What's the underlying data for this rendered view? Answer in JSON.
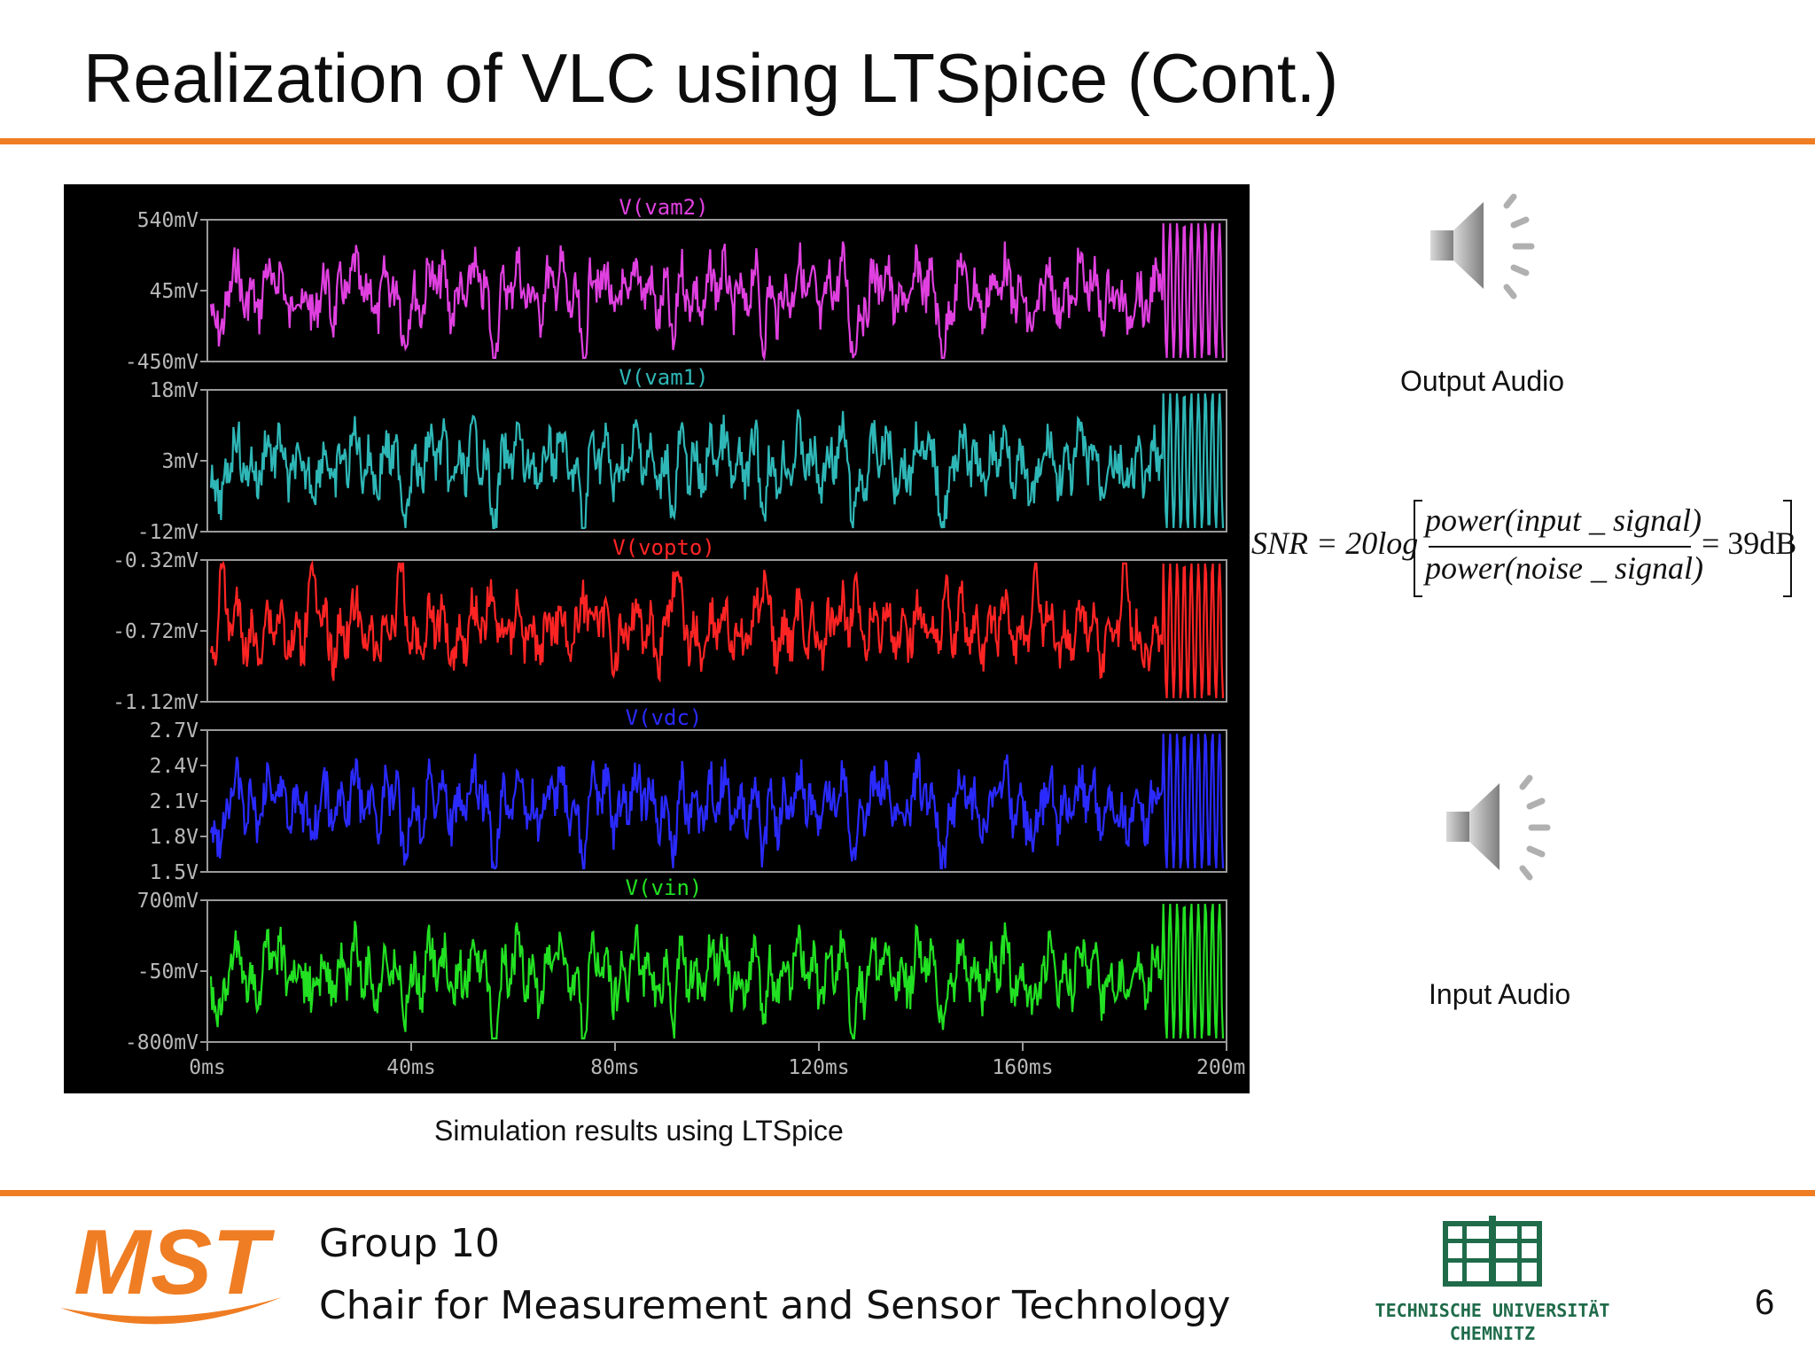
{
  "slide": {
    "title": "Realization of VLC using LTSpice (Cont.)",
    "caption": "Simulation results using LTSpice",
    "page_number": "6",
    "accent_color": "#ef7d23"
  },
  "audio": {
    "output_label": "Output Audio",
    "input_label": "Input Audio",
    "icon": "speaker-icon"
  },
  "formula": {
    "lhs": "SNR = 20log",
    "numerator": "power(input _ signal)",
    "denominator": "power(noise _ signal)",
    "rhs": "= 39dB"
  },
  "footer": {
    "group": "Group 10",
    "chair": "Chair for Measurement and Sensor Technology",
    "left_logo_text": "MST",
    "right_logo_text_line1": "TECHNISCHE UNIVERSITÄT",
    "right_logo_text_line2": "CHEMNITZ"
  },
  "chart_data": {
    "type": "line",
    "x_ticks": [
      "0ms",
      "40ms",
      "80ms",
      "120ms",
      "160ms",
      "200m"
    ],
    "x_range_ms": [
      0,
      200
    ],
    "background": "#000000",
    "traces": [
      {
        "name": "V(vam2)",
        "color": "#e040e0",
        "ticks": [
          "540mV",
          "45mV",
          "-450mV"
        ],
        "range": [
          -450,
          540
        ],
        "unit": "mV"
      },
      {
        "name": "V(vam1)",
        "color": "#2fb7b7",
        "ticks": [
          "18mV",
          "3mV",
          "-12mV"
        ],
        "range": [
          -12,
          18
        ],
        "unit": "mV"
      },
      {
        "name": "V(vopto)",
        "color": "#ff2424",
        "ticks": [
          "-0.32mV",
          "-0.72mV",
          "-1.12mV"
        ],
        "range": [
          -1.12,
          -0.32
        ],
        "unit": "mV"
      },
      {
        "name": "V(vdc)",
        "color": "#2a2aff",
        "ticks": [
          "2.7V",
          "2.4V",
          "2.1V",
          "1.8V",
          "1.5V"
        ],
        "range": [
          1.5,
          2.7
        ],
        "unit": "V"
      },
      {
        "name": "V(vin)",
        "color": "#22e022",
        "ticks": [
          "700mV",
          "-50mV",
          "-800mV"
        ],
        "range": [
          -800,
          700
        ],
        "unit": "mV"
      }
    ]
  }
}
